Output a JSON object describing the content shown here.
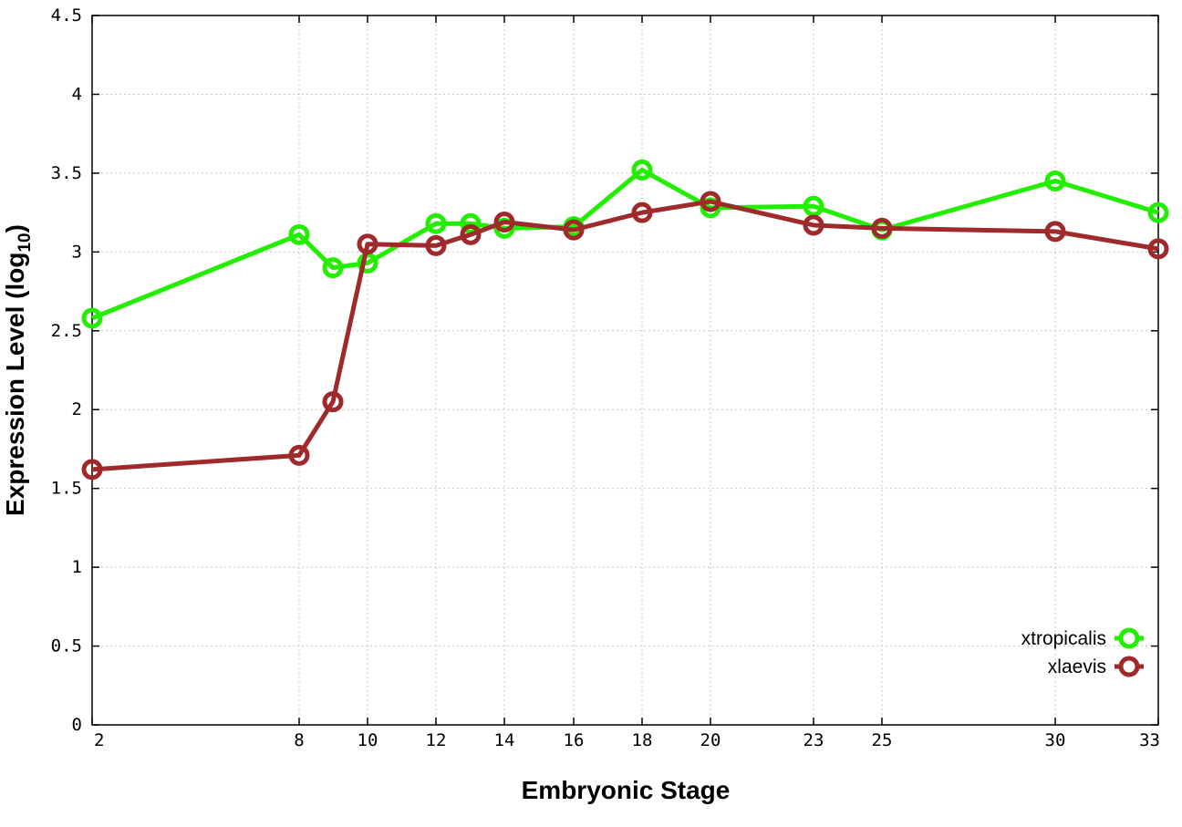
{
  "chart_data": {
    "type": "line",
    "xlabel": "Embryonic Stage",
    "ylabel_main": "Expression Level (log",
    "ylabel_sub": "10",
    "ylabel_close": ")",
    "ylim": [
      0,
      4.5
    ],
    "yticks": [
      0,
      0.5,
      1,
      1.5,
      2,
      2.5,
      3,
      3.5,
      4,
      4.5
    ],
    "ytick_labels": [
      "0",
      "0.5",
      "1",
      "1.5",
      "2",
      "2.5",
      "3",
      "3.5",
      "4",
      "4.5"
    ],
    "x_stages": [
      2,
      8,
      9,
      10,
      12,
      13,
      14,
      16,
      18,
      20,
      23,
      25,
      30,
      33
    ],
    "x_tick_labels": [
      "2",
      "8",
      "10",
      "12",
      "14",
      "16",
      "18",
      "20",
      "23",
      "25",
      "30",
      "33"
    ],
    "x_tick_stages": [
      2,
      8,
      10,
      12,
      14,
      16,
      18,
      20,
      23,
      25,
      30,
      33
    ],
    "grid": true,
    "legend_position": "bottom-right",
    "series": [
      {
        "name": "xtropicalis",
        "color": "#22ee00",
        "values": [
          2.58,
          3.11,
          2.9,
          2.93,
          3.18,
          3.18,
          3.15,
          3.16,
          3.52,
          3.28,
          3.29,
          3.14,
          3.45,
          3.25
        ]
      },
      {
        "name": "xlaevis",
        "color": "#9e2a2b",
        "values": [
          1.62,
          1.71,
          2.05,
          3.05,
          3.04,
          3.11,
          3.19,
          3.14,
          3.25,
          3.32,
          3.17,
          3.15,
          3.13,
          3.02
        ]
      }
    ]
  }
}
